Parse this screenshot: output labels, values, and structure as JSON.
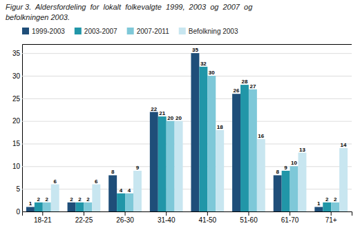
{
  "chart_data": {
    "type": "bar",
    "title": "Figur 3.  Aldersfordeling  for  lokalt  folkevalgte  1999,  2003  og  2007  og",
    "subtitle": "befolkningen 2003.",
    "categories": [
      "18-21",
      "22-25",
      "26-30",
      "31-40",
      "41-50",
      "51-60",
      "61-70",
      "71+"
    ],
    "series": [
      {
        "name": "1999-2003",
        "color": "#1F4E79",
        "values": [
          1,
          2,
          8,
          22,
          35,
          26,
          8,
          1
        ]
      },
      {
        "name": "2003-2007",
        "color": "#2196A8",
        "values": [
          2,
          2,
          4,
          21,
          32,
          28,
          9,
          2
        ]
      },
      {
        "name": "2007-2011",
        "color": "#7EC8D8",
        "values": [
          2,
          2,
          4,
          20,
          30,
          27,
          10,
          2
        ]
      },
      {
        "name": "Befolkning 2003",
        "color": "#C8E6F0",
        "values": [
          6,
          6,
          9,
          20,
          18,
          16,
          13,
          14
        ]
      }
    ],
    "ylim": [
      0,
      37
    ],
    "yticks": [
      0,
      5,
      10,
      15,
      20,
      25,
      30,
      35
    ],
    "grid": true,
    "legend": "top",
    "data_labels": true
  }
}
